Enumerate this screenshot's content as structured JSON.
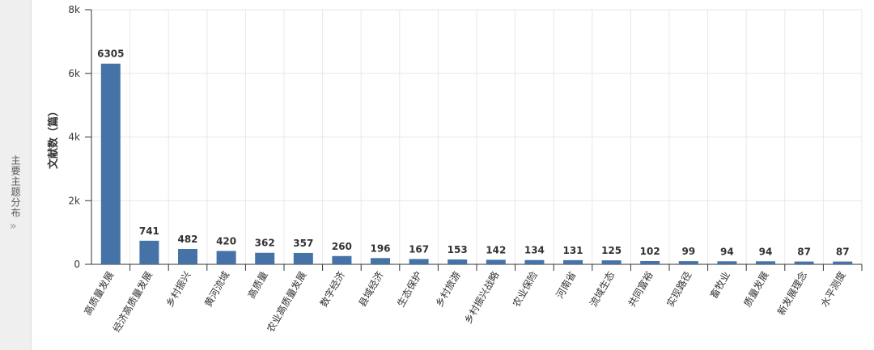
{
  "sidebar": {
    "title": "主要主题分布",
    "toggle": "»"
  },
  "chart_data": {
    "type": "bar",
    "y_label": "文献数（篇）",
    "categories": [
      "高质量发展",
      "经济高质量发展",
      "乡村振兴",
      "黄河流域",
      "高质量",
      "农业高质量发展",
      "数字经济",
      "县域经济",
      "生态保护",
      "乡村旅游",
      "乡村振兴战略",
      "农业保险",
      "河南省",
      "流域生态",
      "共同富裕",
      "实现路径",
      "畜牧业",
      "质量发展",
      "新发展理念",
      "水平测度"
    ],
    "values": [
      6305,
      741,
      482,
      420,
      362,
      357,
      260,
      196,
      167,
      153,
      142,
      134,
      131,
      125,
      102,
      99,
      94,
      94,
      87,
      87
    ],
    "color": "#4572a7",
    "ylim": [
      0,
      8000
    ],
    "yticks": [
      0,
      {
        "value": 2000,
        "label": "2k"
      },
      {
        "value": 4000,
        "label": "4k"
      },
      {
        "value": 6000,
        "label": "6k"
      },
      {
        "value": 8000,
        "label": "8k"
      }
    ],
    "grid": true
  }
}
